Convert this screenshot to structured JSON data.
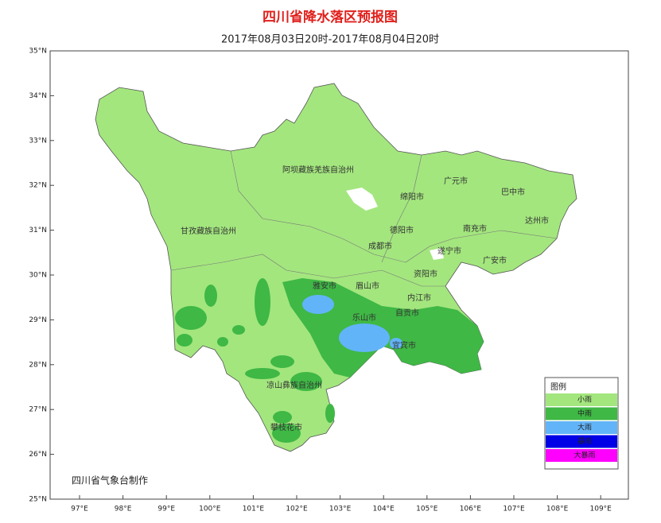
{
  "header": {
    "title": "四川省降水落区预报图",
    "subtitle": "2017年08月03日20时-2017年08月04日20时"
  },
  "axes": {
    "lat_ticks": [
      "35°N",
      "34°N",
      "33°N",
      "32°N",
      "31°N",
      "30°N",
      "29°N",
      "28°N",
      "27°N",
      "26°N",
      "25°N"
    ],
    "lon_ticks": [
      "97°E",
      "98°E",
      "99°E",
      "100°E",
      "101°E",
      "102°E",
      "103°E",
      "104°E",
      "105°E",
      "106°E",
      "107°E",
      "108°E",
      "109°E"
    ]
  },
  "places": [
    "阿坝藏族羌族自治州",
    "广元市",
    "绵阳市",
    "巴中市",
    "甘孜藏族自治州",
    "德阳市",
    "南充市",
    "达州市",
    "成都市",
    "遂宁市",
    "广安市",
    "雅安市",
    "眉山市",
    "资阳市",
    "内江市",
    "乐山市",
    "自贡市",
    "宜宾市",
    "凉山彝族自治州",
    "攀枝花市"
  ],
  "legend": {
    "title": "图例",
    "items": [
      {
        "label": "小雨",
        "color": "#a3e67e"
      },
      {
        "label": "中雨",
        "color": "#3fb845"
      },
      {
        "label": "大雨",
        "color": "#62b4f8"
      },
      {
        "label": "暴雨",
        "color": "#0000e6"
      },
      {
        "label": "大暴雨",
        "color": "#ff00ff"
      }
    ]
  },
  "credit": "四川省气象台制作"
}
